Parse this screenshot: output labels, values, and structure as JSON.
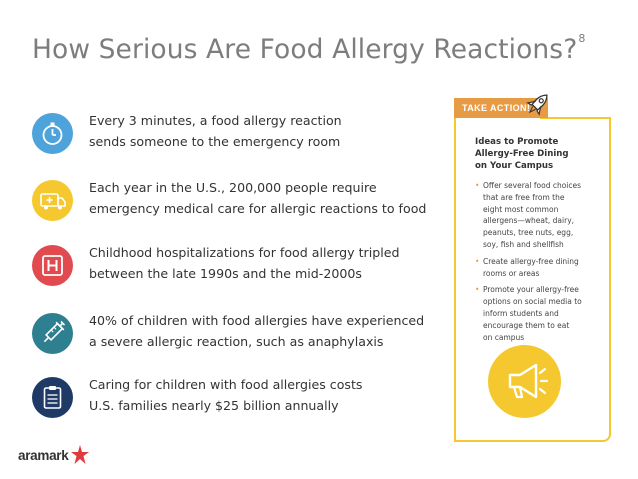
{
  "title": "How Serious Are Food Allergy Reactions?",
  "title_superscript": "8",
  "facts": [
    {
      "line1": "Every 3 minutes, a food allergy reaction",
      "line2": "sends someone to the emergency room",
      "icon": "stopwatch-icon",
      "color": "#4ea3db"
    },
    {
      "line1": "Each year in the U.S., 200,000 people require",
      "line2": "emergency medical care for allergic reactions to food",
      "icon": "ambulance-icon",
      "color": "#f5c830"
    },
    {
      "line1": "Childhood hospitalizations for food allergy tripled",
      "line2": "between the late 1990s and the mid-2000s",
      "icon": "hospital-icon",
      "color": "#e14a4f"
    },
    {
      "line1": "40% of children with food allergies have experienced",
      "line2": "a severe allergic reaction, such as anaphylaxis",
      "icon": "syringe-icon",
      "color": "#2e7f8f"
    },
    {
      "line1": "Caring for children with food allergies costs",
      "line2": "U.S. families nearly $25 billion annually",
      "icon": "clipboard-icon",
      "color": "#1f3a66"
    }
  ],
  "sidebar": {
    "badge": "TAKE ACTION!",
    "heading_lines": [
      "Ideas to Promote",
      "Allergy-Free Dining",
      "on Your Campus"
    ],
    "tips": [
      [
        "Offer several food choices",
        "that are free from the",
        "eight most common",
        "allergens—wheat, dairy,",
        "peanuts, tree nuts, egg,",
        "soy, fish and shellfish"
      ],
      [
        "Create allergy-free dining",
        "rooms or areas"
      ],
      [
        "Promote your allergy-free",
        "options on social media to",
        "inform students and",
        "encourage them to eat",
        "on campus"
      ]
    ],
    "accent_color": "#e89b45",
    "border_color": "#f5c830"
  },
  "logo": "aramark"
}
